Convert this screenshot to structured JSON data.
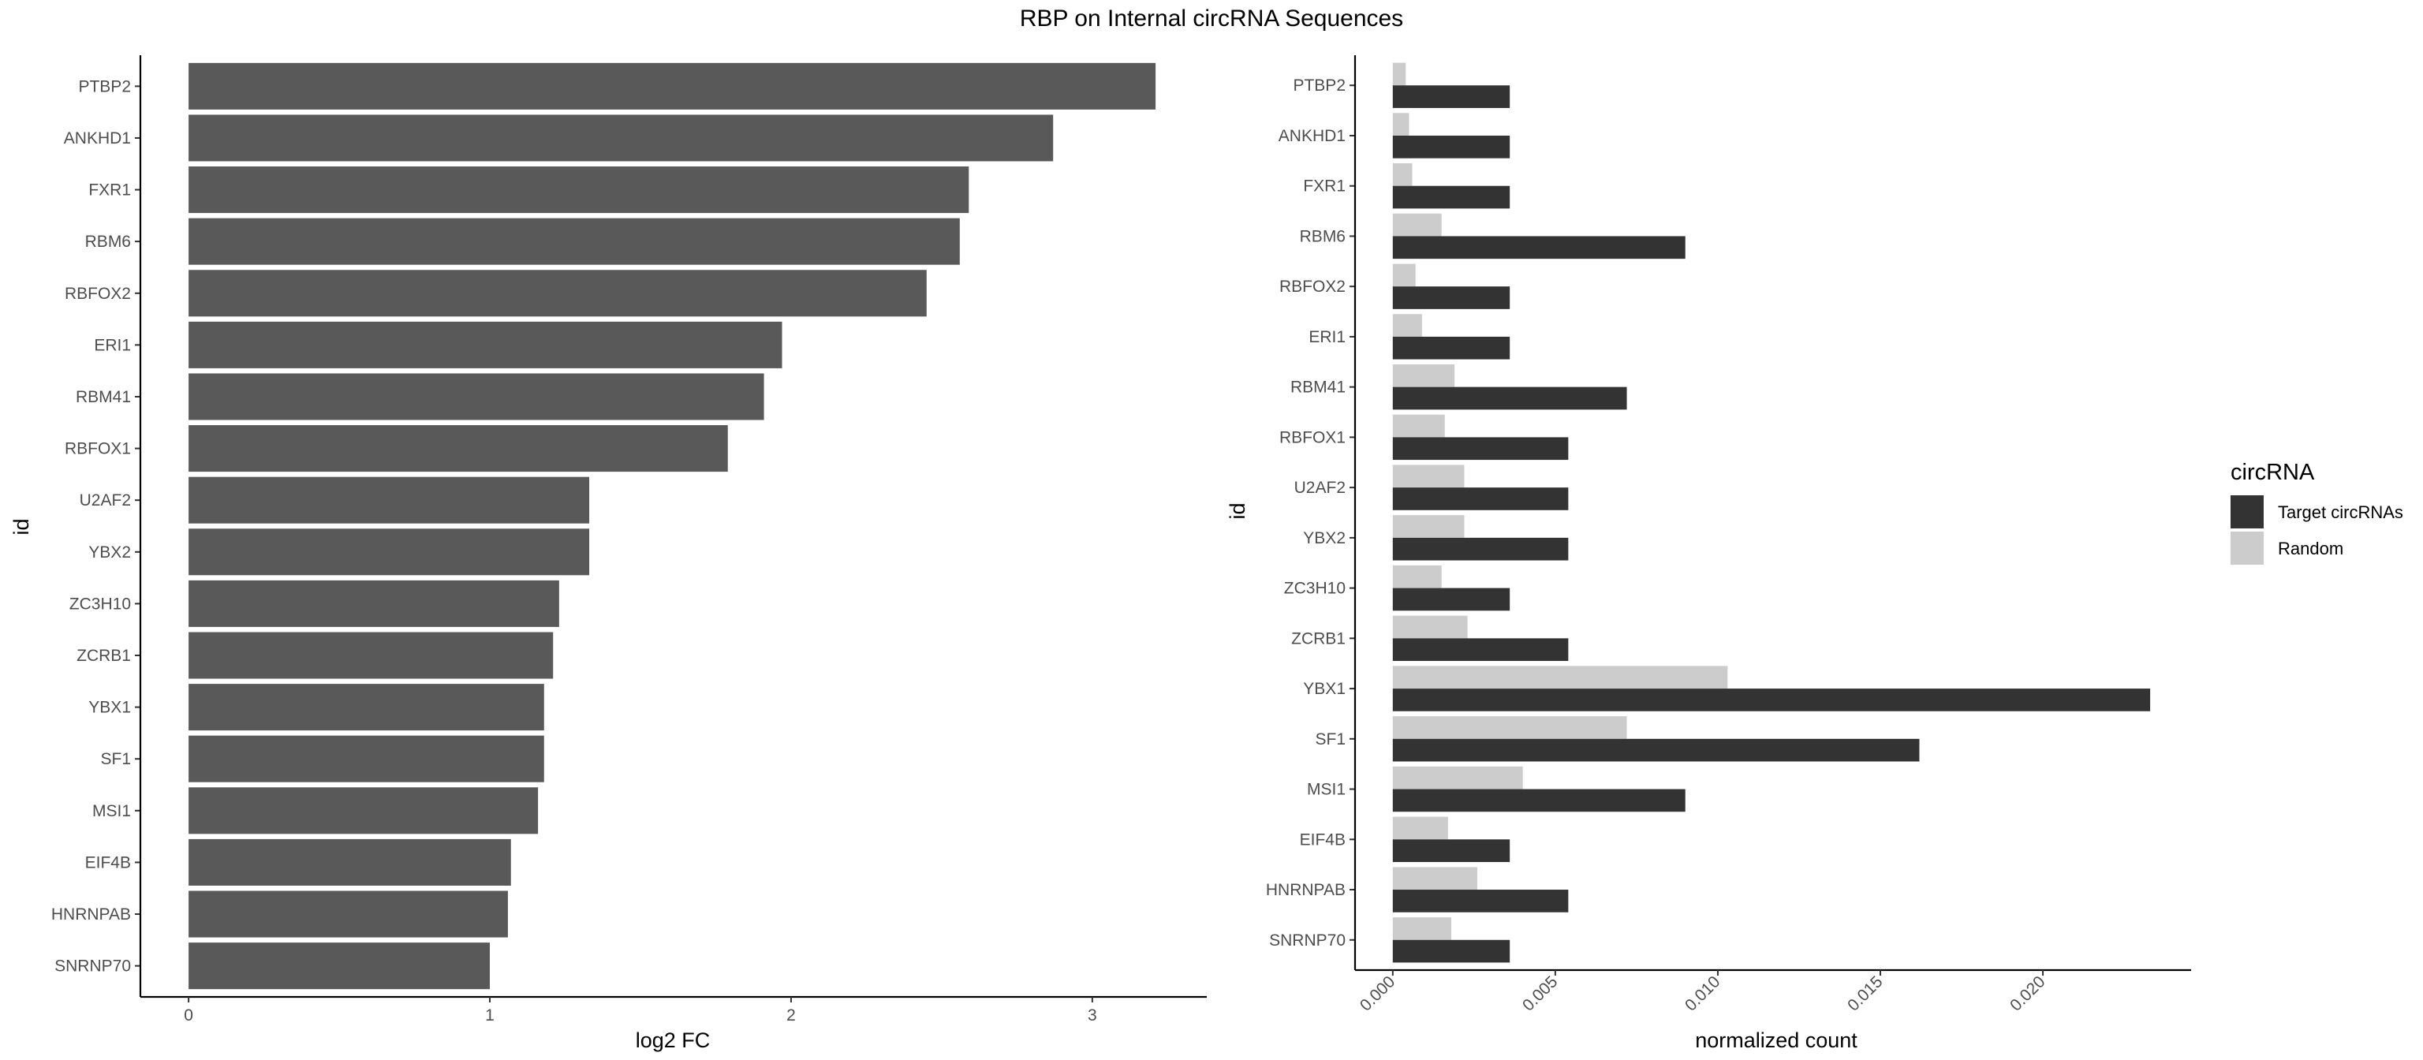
{
  "title": "RBP on Internal circRNA Sequences",
  "chart_data": [
    {
      "type": "bar",
      "orientation": "horizontal",
      "categories": [
        "PTBP2",
        "ANKHD1",
        "FXR1",
        "RBM6",
        "RBFOX2",
        "ERI1",
        "RBM41",
        "RBFOX1",
        "U2AF2",
        "YBX2",
        "ZC3H10",
        "ZCRB1",
        "YBX1",
        "SF1",
        "MSI1",
        "EIF4B",
        "HNRNPAB",
        "SNRNP70"
      ],
      "values": [
        3.21,
        2.87,
        2.59,
        2.56,
        2.45,
        1.97,
        1.91,
        1.79,
        1.33,
        1.33,
        1.23,
        1.21,
        1.18,
        1.18,
        1.16,
        1.07,
        1.06,
        1.0
      ],
      "xlabel": "log2 FC",
      "ylabel": "id",
      "xlim": [
        -0.16,
        3.38
      ],
      "xticks": [
        "0",
        "1",
        "2",
        "3"
      ],
      "bar_color": "#595959",
      "grid": false
    },
    {
      "type": "bar",
      "orientation": "horizontal",
      "categories": [
        "PTBP2",
        "ANKHD1",
        "FXR1",
        "RBM6",
        "RBFOX2",
        "ERI1",
        "RBM41",
        "RBFOX1",
        "U2AF2",
        "YBX2",
        "ZC3H10",
        "ZCRB1",
        "YBX1",
        "SF1",
        "MSI1",
        "EIF4B",
        "HNRNPAB",
        "SNRNP70"
      ],
      "series": [
        {
          "name": "Target circRNAs",
          "color": "#333333",
          "values": [
            0.0036,
            0.0036,
            0.0036,
            0.009,
            0.0036,
            0.0036,
            0.0072,
            0.0054,
            0.0054,
            0.0054,
            0.0036,
            0.0054,
            0.0233,
            0.0162,
            0.009,
            0.0036,
            0.0054,
            0.0036
          ]
        },
        {
          "name": "Random",
          "color": "#cccccc",
          "values": [
            0.0004,
            0.0005,
            0.0006,
            0.0015,
            0.0007,
            0.0009,
            0.0019,
            0.0016,
            0.0022,
            0.0022,
            0.0015,
            0.0023,
            0.0103,
            0.0072,
            0.004,
            0.0017,
            0.0026,
            0.0018
          ]
        }
      ],
      "xlabel": "normalized count",
      "ylabel": "id",
      "xlim": [
        -0.00116,
        0.02456
      ],
      "xticks": [
        "0.000",
        "0.005",
        "0.010",
        "0.015",
        "0.020"
      ],
      "tick_label_rotation": -45,
      "legend_title": "circRNA",
      "legend_position": "right",
      "grid": false
    }
  ]
}
